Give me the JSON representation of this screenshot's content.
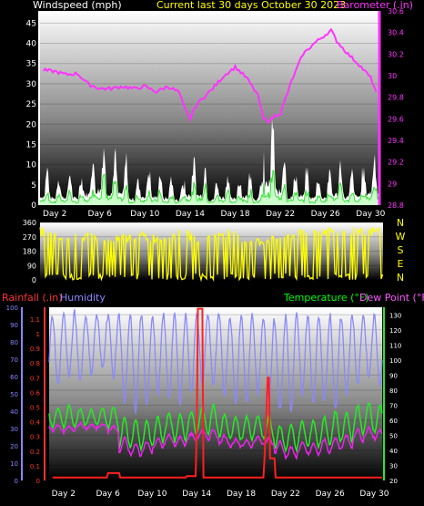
{
  "chart_data": [
    {
      "type": "line",
      "title": "Current last 30 days October 30 2023",
      "left_axis_label": "Windspeed (mph)",
      "right_axis_label": "Barometer (.in)",
      "x_ticks": [
        "Day 2",
        "Day 6",
        "Day 10",
        "Day 14",
        "Day 18",
        "Day 22",
        "Day 26",
        "Day 30"
      ],
      "x_tick_days": [
        2,
        6,
        10,
        14,
        18,
        22,
        26,
        30
      ],
      "x_range": [
        0.7,
        30.7
      ],
      "left_ticks": [
        "0",
        "5",
        "10",
        "15",
        "20",
        "25",
        "30",
        "35",
        "40",
        "45"
      ],
      "left_range": [
        0,
        48
      ],
      "right_ticks": [
        "28.8",
        "29",
        "29.2",
        "29.4",
        "29.6",
        "29.8",
        "30",
        "30.2",
        "30.4",
        "30.6"
      ],
      "right_range": [
        28.8,
        30.6
      ],
      "colors": {
        "title": "#ffff00",
        "wind_label": "#ffffff",
        "baro_label": "#ff33ff",
        "gust": "#ffffff",
        "wind": "#66ff66",
        "baro": "#ff33ff"
      },
      "series": [
        {
          "name": "Barometer",
          "axis": "right",
          "color": "#ff33ff",
          "x": [
            1,
            2,
            3,
            4,
            5,
            6,
            7,
            8,
            9,
            10,
            11,
            12,
            13,
            13.5,
            14,
            14.5,
            15,
            16,
            17,
            18,
            19,
            20,
            20.5,
            21,
            21.5,
            22,
            23,
            24,
            25,
            26,
            26.5,
            27,
            28,
            29,
            30,
            30.5
          ],
          "values": [
            30.05,
            30.04,
            30.01,
            30.02,
            29.92,
            29.88,
            29.88,
            29.9,
            29.88,
            29.9,
            29.85,
            29.9,
            29.85,
            29.7,
            29.6,
            29.72,
            29.78,
            29.88,
            30.0,
            30.08,
            29.98,
            29.82,
            29.6,
            29.58,
            29.63,
            29.65,
            29.95,
            30.2,
            30.3,
            30.38,
            30.42,
            30.32,
            30.2,
            30.1,
            29.98,
            29.85
          ]
        }
      ],
      "wind_profile": {
        "gust_days": [
          1,
          2,
          3,
          4,
          5,
          6,
          7,
          8,
          9,
          10,
          11,
          12,
          13,
          14,
          15,
          16,
          17,
          18,
          19,
          20,
          21,
          22,
          23,
          24,
          25,
          26,
          27,
          28,
          29,
          30
        ],
        "gust_mph": [
          10,
          8,
          9,
          8,
          12,
          17,
          14,
          13,
          7,
          10,
          9,
          8,
          6,
          12,
          11,
          6,
          9,
          7,
          10,
          7,
          24,
          15,
          9,
          10,
          8,
          9,
          12,
          9,
          10,
          14
        ],
        "wind_mph": [
          3,
          2,
          3,
          2,
          3,
          6,
          5,
          4,
          2,
          3,
          3,
          2,
          2,
          4,
          4,
          2,
          3,
          2,
          3,
          2,
          7,
          5,
          3,
          3,
          2,
          3,
          4,
          3,
          3,
          5
        ]
      }
    },
    {
      "type": "line",
      "right_letters": [
        "N",
        "W",
        "S",
        "E",
        "N"
      ],
      "left_ticks": [
        "0",
        "90",
        "180",
        "270",
        "360"
      ],
      "left_range": [
        0,
        360
      ],
      "x_range": [
        0.7,
        30.7
      ],
      "colors": {
        "direction": "#ffff00",
        "letters": "#ffff00"
      },
      "series": [
        {
          "name": "Wind direction",
          "color": "#ffff00",
          "x": [
            1,
            3,
            5,
            7,
            9,
            11,
            13,
            15,
            17,
            19,
            21,
            23,
            25,
            27,
            29,
            30.5
          ],
          "values": [
            300,
            250,
            270,
            240,
            280,
            260,
            290,
            250,
            300,
            230,
            250,
            280,
            300,
            320,
            290,
            310
          ]
        }
      ]
    },
    {
      "type": "line",
      "left_label": "Rainfall (.in)",
      "humidity_label": "Humidity",
      "right_label_temp": "Temperature (°F)",
      "right_label_dew": "Dew Point (°F)",
      "x_ticks": [
        "Day 2",
        "Day 6",
        "Day 10",
        "Day 14",
        "Day 18",
        "Day 22",
        "Day 26",
        "Day 30"
      ],
      "x_tick_days": [
        2,
        6,
        10,
        14,
        18,
        22,
        26,
        30
      ],
      "x_range": [
        0.7,
        30.7
      ],
      "rain_ticks": [
        "0",
        "0.1",
        "0.2",
        "0.3",
        "0.4",
        "0.5",
        "0.6",
        "0.7",
        "0.8",
        "0.9",
        "1",
        "1.1"
      ],
      "rain_range": [
        0,
        1.18
      ],
      "humidity_ticks": [
        "0",
        "10",
        "20",
        "30",
        "40",
        "50",
        "60",
        "70",
        "80",
        "90",
        "100"
      ],
      "humidity_range": [
        0,
        100
      ],
      "temp_ticks": [
        "20",
        "30",
        "40",
        "50",
        "60",
        "70",
        "80",
        "90",
        "100",
        "110",
        "120",
        "130"
      ],
      "temp_range": [
        20,
        135
      ],
      "colors": {
        "rain": "#ff2020",
        "humidity": "#8888ff",
        "temp": "#22ee22",
        "dew": "#ee22ee",
        "temp_label": "#00ff00",
        "dew_label": "#ff55ff",
        "rain_label": "#ff3333",
        "humidity_label": "#8888ff"
      },
      "series": [
        {
          "name": "Rainfall",
          "color": "#ff2020",
          "x": [
            1,
            5.9,
            6,
            6.5,
            7,
            7.1,
            13,
            13.1,
            13.5,
            13.9,
            14,
            14.1,
            14.5,
            14.6,
            20,
            20.1,
            20.4,
            20.5,
            20.6,
            21,
            21.1,
            30.7
          ],
          "values": [
            0.02,
            0.02,
            0.05,
            0.05,
            0.05,
            0.02,
            0.02,
            0.03,
            0.03,
            0.03,
            0.35,
            1.17,
            1.17,
            0.02,
            0.02,
            0.15,
            0.7,
            0.7,
            0.15,
            0.15,
            0.02,
            0.02
          ]
        },
        {
          "name": "Humidity",
          "color": "#8888ff",
          "daily_low": [
            55,
            60,
            58,
            62,
            65,
            60,
            45,
            40,
            45,
            50,
            48,
            45,
            50,
            55,
            55,
            50,
            45,
            45,
            50,
            45,
            40,
            40,
            50,
            45,
            45,
            40,
            50,
            55,
            60,
            55
          ],
          "daily_high": [
            95,
            97,
            95,
            96,
            95,
            97,
            95,
            96,
            95,
            95,
            96,
            95,
            97,
            95,
            96,
            95,
            95,
            96,
            95,
            95,
            92,
            96,
            95,
            95,
            95,
            96,
            95,
            96,
            95,
            95
          ]
        },
        {
          "name": "Temperature",
          "color": "#22ee22",
          "daily_low": [
            56,
            55,
            56,
            57,
            56,
            54,
            42,
            41,
            42,
            44,
            48,
            46,
            50,
            52,
            51,
            48,
            47,
            47,
            48,
            47,
            41,
            40,
            43,
            42,
            43,
            44,
            46,
            50,
            52,
            52
          ],
          "daily_high": [
            68,
            70,
            68,
            67,
            68,
            69,
            62,
            60,
            60,
            62,
            65,
            64,
            66,
            68,
            70,
            64,
            62,
            62,
            63,
            62,
            56,
            57,
            59,
            60,
            62,
            66,
            65,
            70,
            72,
            70
          ]
        },
        {
          "name": "Dew Point",
          "color": "#ee22ee",
          "daily_low": [
            53,
            52,
            54,
            54,
            55,
            52,
            38,
            36,
            38,
            41,
            44,
            43,
            46,
            48,
            47,
            44,
            42,
            42,
            44,
            43,
            38,
            35,
            38,
            37,
            38,
            40,
            42,
            46,
            48,
            47
          ],
          "daily_high": [
            57,
            56,
            58,
            57,
            58,
            56,
            48,
            44,
            46,
            48,
            50,
            49,
            51,
            53,
            54,
            50,
            47,
            47,
            49,
            48,
            46,
            42,
            45,
            44,
            47,
            48,
            50,
            54,
            55,
            54
          ]
        }
      ]
    }
  ]
}
